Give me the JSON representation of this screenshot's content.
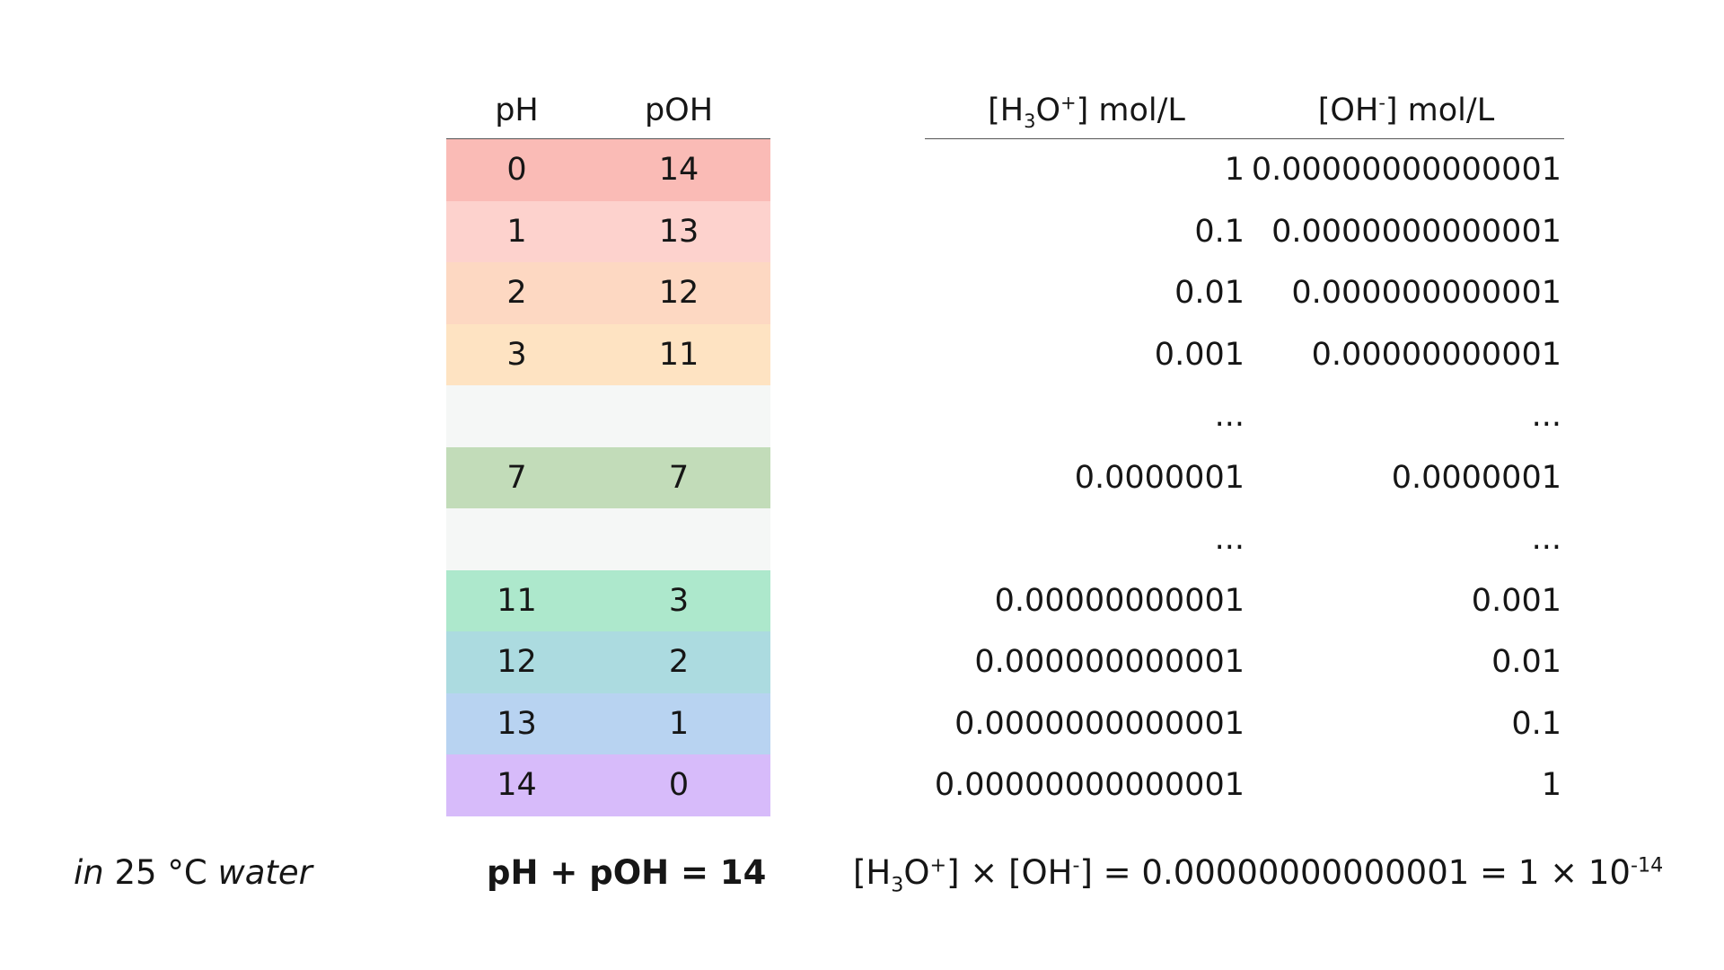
{
  "ph_table": {
    "header": {
      "ph": "pH",
      "poh": "pOH"
    },
    "rows": [
      {
        "ph": "0",
        "poh": "14",
        "color": "#fabbb6"
      },
      {
        "ph": "1",
        "poh": "13",
        "color": "#fdd2cd"
      },
      {
        "ph": "2",
        "poh": "12",
        "color": "#fdd8c2"
      },
      {
        "ph": "3",
        "poh": "11",
        "color": "#fee3c2"
      },
      {
        "ph": "",
        "poh": "",
        "color": "#f5f7f6"
      },
      {
        "ph": "7",
        "poh": "7",
        "color": "#c2dcb9"
      },
      {
        "ph": "",
        "poh": "",
        "color": "#f5f7f6"
      },
      {
        "ph": "11",
        "poh": "3",
        "color": "#ade8cc"
      },
      {
        "ph": "12",
        "poh": "2",
        "color": "#acdbe0"
      },
      {
        "ph": "13",
        "poh": "1",
        "color": "#b8d3f1"
      },
      {
        "ph": "14",
        "poh": "0",
        "color": "#d7bbfa"
      }
    ]
  },
  "conc_table": {
    "header": {
      "h3o_pre": "[H",
      "h3o_sub": "3",
      "h3o_mid": "O",
      "h3o_sup": "+",
      "h3o_post": "] mol/L",
      "oh_pre": "[OH",
      "oh_sup": "-",
      "oh_post": "] mol/L"
    },
    "rows": [
      {
        "h3o": "1",
        "oh": "0.00000000000001"
      },
      {
        "h3o": "0.1",
        "oh": "0.0000000000001"
      },
      {
        "h3o": "0.01",
        "oh": "0.000000000001"
      },
      {
        "h3o": "0.001",
        "oh": "0.00000000001"
      },
      {
        "h3o": "...",
        "oh": "..."
      },
      {
        "h3o": "0.0000001",
        "oh": "0.0000001"
      },
      {
        "h3o": "...",
        "oh": "..."
      },
      {
        "h3o": "0.00000000001",
        "oh": "0.001"
      },
      {
        "h3o": "0.000000000001",
        "oh": "0.01"
      },
      {
        "h3o": "0.0000000000001",
        "oh": "0.1"
      },
      {
        "h3o": "0.00000000000001",
        "oh": "1"
      }
    ]
  },
  "footer": {
    "left_italic_1": "in",
    "left_plain": " 25 °C ",
    "left_italic_2": "water",
    "middle": "pH + pOH = 14",
    "right_pre": "[H",
    "right_sub": "3",
    "right_mid1": "O",
    "right_sup1": "+",
    "right_mid2": "] × [OH",
    "right_sup2": "-",
    "right_mid3": "] = 0.00000000000001 = 1 × 10",
    "right_sup3": "-14"
  }
}
